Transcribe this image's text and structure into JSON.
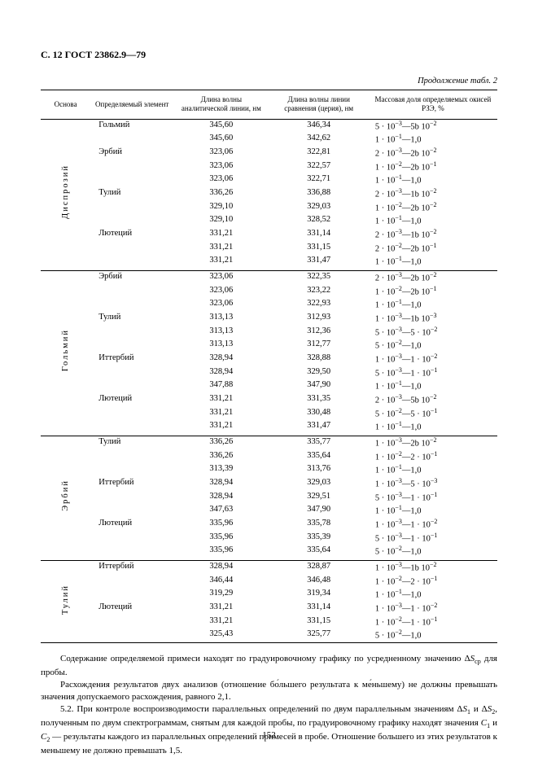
{
  "header": "С. 12 ГОСТ 23862.9—79",
  "caption": "Продолжение табл. 2",
  "cols": {
    "c1": "Основа",
    "c2": "Определяемый элемент",
    "c3": "Длина волны аналитической линии, нм",
    "c4": "Длина волны линии сравнения (церия), нм",
    "c5": "Массовая доля определяемых окисей РЗЭ, %"
  },
  "groups": [
    {
      "osnova": "Диспрозий",
      "rows": [
        {
          "el": "Гольмий",
          "an": "345,60",
          "cmp": "346,34",
          "mass": "5 · 10<sup>−3</sup>—5b 10<sup>−2</sup>"
        },
        {
          "el": "",
          "an": "345,60",
          "cmp": "342,62",
          "mass": "1 · 10<sup>−1</sup>—1,0"
        },
        {
          "el": "Эрбий",
          "an": "323,06",
          "cmp": "322,81",
          "mass": "2 · 10<sup>−3</sup>—2b 10<sup>−2</sup>"
        },
        {
          "el": "",
          "an": "323,06",
          "cmp": "322,57",
          "mass": "1 · 10<sup>−2</sup>—2b 10<sup>−1</sup>"
        },
        {
          "el": "",
          "an": "323,06",
          "cmp": "322,71",
          "mass": "1 · 10<sup>−1</sup>—1,0"
        },
        {
          "el": "Тулий",
          "an": "336,26",
          "cmp": "336,88",
          "mass": "2 · 10<sup>−3</sup>—1b 10<sup>−2</sup>"
        },
        {
          "el": "",
          "an": "329,10",
          "cmp": "329,03",
          "mass": "1 · 10<sup>−2</sup>—2b 10<sup>−2</sup>"
        },
        {
          "el": "",
          "an": "329,10",
          "cmp": "328,52",
          "mass": "1 · 10<sup>−1</sup>—1,0"
        },
        {
          "el": "Лютеций",
          "an": "331,21",
          "cmp": "331,14",
          "mass": "2 · 10<sup>−3</sup>—1b 10<sup>−2</sup>"
        },
        {
          "el": "",
          "an": "331,21",
          "cmp": "331,15",
          "mass": "2 · 10<sup>−2</sup>—2b 10<sup>−1</sup>"
        },
        {
          "el": "",
          "an": "331,21",
          "cmp": "331,47",
          "mass": "1 · 10<sup>−1</sup>—1,0"
        }
      ]
    },
    {
      "osnova": "Гольмий",
      "rows": [
        {
          "el": "Эрбий",
          "an": "323,06",
          "cmp": "322,35",
          "mass": "2 · 10<sup>−3</sup>—2b 10<sup>−2</sup>"
        },
        {
          "el": "",
          "an": "323,06",
          "cmp": "323,22",
          "mass": "1 · 10<sup>−2</sup>—2b 10<sup>−1</sup>"
        },
        {
          "el": "",
          "an": "323,06",
          "cmp": "322,93",
          "mass": "1 · 10<sup>−1</sup>—1,0"
        },
        {
          "el": "Тулий",
          "an": "313,13",
          "cmp": "312,93",
          "mass": "1 · 10<sup>−3</sup>—1b 10<sup>−3</sup>"
        },
        {
          "el": "",
          "an": "313,13",
          "cmp": "312,36",
          "mass": "5 · 10<sup>−3</sup>—5 · 10<sup>−2</sup>"
        },
        {
          "el": "",
          "an": "313,13",
          "cmp": "312,77",
          "mass": "5 · 10<sup>−2</sup>—1,0"
        },
        {
          "el": "Иттербий",
          "an": "328,94",
          "cmp": "328,88",
          "mass": "1 · 10<sup>−3</sup>—1 · 10<sup>−2</sup>"
        },
        {
          "el": "",
          "an": "328,94",
          "cmp": "329,50",
          "mass": "5 · 10<sup>−3</sup>—1 · 10<sup>−1</sup>"
        },
        {
          "el": "",
          "an": "347,88",
          "cmp": "347,90",
          "mass": "1 · 10<sup>−1</sup>—1,0"
        },
        {
          "el": "Лютеций",
          "an": "331,21",
          "cmp": "331,35",
          "mass": "2 · 10<sup>−3</sup>—5b 10<sup>−2</sup>"
        },
        {
          "el": "",
          "an": "331,21",
          "cmp": "330,48",
          "mass": "5 · 10<sup>−2</sup>—5 · 10<sup>−1</sup>"
        },
        {
          "el": "",
          "an": "331,21",
          "cmp": "331,47",
          "mass": "1 · 10<sup>−1</sup>—1,0"
        }
      ]
    },
    {
      "osnova": "Эрбий",
      "rows": [
        {
          "el": "Тулий",
          "an": "336,26",
          "cmp": "335,77",
          "mass": "1 · 10<sup>−3</sup>—2b 10<sup>−2</sup>"
        },
        {
          "el": "",
          "an": "336,26",
          "cmp": "335,64",
          "mass": "1 · 10<sup>−2</sup>—2 · 10<sup>−1</sup>"
        },
        {
          "el": "",
          "an": "313,39",
          "cmp": "313,76",
          "mass": "1 · 10<sup>−1</sup>—1,0"
        },
        {
          "el": "Иттербий",
          "an": "328,94",
          "cmp": "329,03",
          "mass": "1 · 10<sup>−3</sup>—5 · 10<sup>−3</sup>"
        },
        {
          "el": "",
          "an": "328,94",
          "cmp": "329,51",
          "mass": "5 · 10<sup>−3</sup>—1 · 10<sup>−1</sup>"
        },
        {
          "el": "",
          "an": "347,63",
          "cmp": "347,90",
          "mass": "1 · 10<sup>−1</sup>—1,0"
        },
        {
          "el": "Лютеций",
          "an": "335,96",
          "cmp": "335,78",
          "mass": "1 · 10<sup>−3</sup>—1 · 10<sup>−2</sup>"
        },
        {
          "el": "",
          "an": "335,96",
          "cmp": "335,39",
          "mass": "5 · 10<sup>−3</sup>—1 · 10<sup>−1</sup>"
        },
        {
          "el": "",
          "an": "335,96",
          "cmp": "335,64",
          "mass": "5 · 10<sup>−2</sup>—1,0"
        }
      ]
    },
    {
      "osnova": "Тулий",
      "rows": [
        {
          "el": "Иттербий",
          "an": "328,94",
          "cmp": "328,87",
          "mass": "1 · 10<sup>−3</sup>—1b 10<sup>−2</sup>"
        },
        {
          "el": "",
          "an": "346,44",
          "cmp": "346,48",
          "mass": "1 · 10<sup>−2</sup>—2 · 10<sup>−1</sup>"
        },
        {
          "el": "",
          "an": "319,29",
          "cmp": "319,34",
          "mass": "1 · 10<sup>−1</sup>—1,0"
        },
        {
          "el": "Лютеций",
          "an": "331,21",
          "cmp": "331,14",
          "mass": "1 · 10<sup>−3</sup>—1 · 10<sup>−2</sup>"
        },
        {
          "el": "",
          "an": "331,21",
          "cmp": "331,15",
          "mass": "1 · 10<sup>−2</sup>—1 · 10<sup>−1</sup>"
        },
        {
          "el": "",
          "an": "325,43",
          "cmp": "325,77",
          "mass": "5 · 10<sup>−2</sup>—1,0"
        }
      ]
    }
  ],
  "para1": "Содержание определяемой примеси находят по градуировочному графику по усредненному значению Δ<i>S</i><sub>ср</sub> для пробы.",
  "para2": "Расхождения результатов двух анализов (отношение бо́льшего результата к ме́ньшему) не должны превышать значения допускаемого расхождения, равного 2,1.",
  "para3": "5.2. При контроле воспроизводимости параллельных определений по двум параллельным значениям Δ<i>S</i><sub>1</sub> и Δ<i>S</i><sub>2</sub>, полученным по двум спектрограммам, снятым для каждой пробы, по градуировочному графику находят значения <i>C</i><sub>1</sub> и <i>C</i><sub>2</sub> — результаты каждого из параллельных определений примесей в пробе. Отношение большего из этих результатов к меньшему не должно превышать 1,5.",
  "pagenum": "152"
}
